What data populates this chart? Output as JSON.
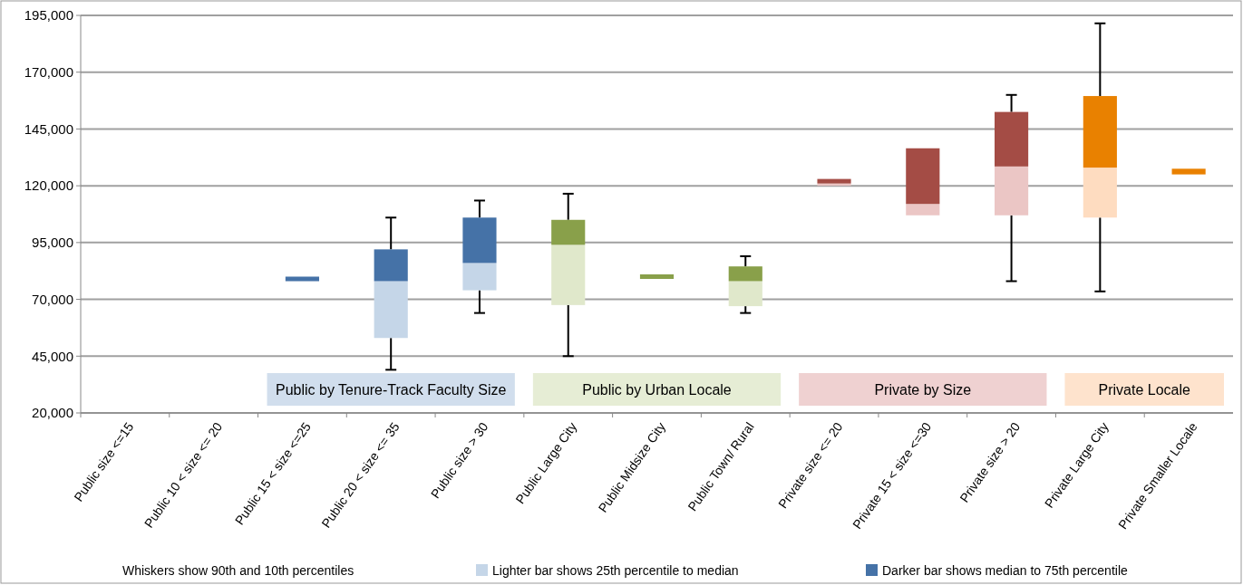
{
  "chart_data": {
    "type": "box",
    "categories": [
      "Public size <=15",
      "Public 10 < size <= 20",
      "Public 15 < size <=25",
      "Public 20 < size <= 35",
      "Public size > 30",
      "Public Large City",
      "Public Midsize City",
      "Public Town/ Rural",
      "Private size <= 20",
      "Private 15 < size <=30",
      "Private size > 20",
      "Private Large City",
      "Private Smaller Locale"
    ],
    "ylim": [
      20000,
      195000
    ],
    "yticks": [
      {
        "value": 20000,
        "label": "20,000"
      },
      {
        "value": 45000,
        "label": "45,000"
      },
      {
        "value": 70000,
        "label": "70,000"
      },
      {
        "value": 95000,
        "label": "95,000"
      },
      {
        "value": 120000,
        "label": "120,000"
      },
      {
        "value": 145000,
        "label": "145,000"
      },
      {
        "value": 170000,
        "label": "170,000"
      },
      {
        "value": 195000,
        "label": "195,000"
      }
    ],
    "grid": "y",
    "series": [
      {
        "name": "Public by Tenure-Track Faculty Size",
        "color": "#4572a7",
        "colors": [
          null,
          null,
          null,
          "#c5d6e8",
          "#c5d6e8",
          null,
          null,
          null,
          null,
          null,
          null,
          null,
          null
        ],
        "boxes": [
          null,
          null,
          {
            "low": null,
            "q1": 78000,
            "median": 78000,
            "q3": 80000,
            "high": null
          },
          {
            "low": 39000,
            "q1": 53000,
            "median": 78000,
            "q3": 92000,
            "high": 106000
          },
          {
            "low": 64000,
            "q1": 74000,
            "median": 86000,
            "q3": 106000,
            "high": 113500
          },
          null,
          null,
          null,
          null,
          null,
          null,
          null,
          null
        ]
      },
      {
        "name": "Public by Urban Locale",
        "color": "#89a04a",
        "colors": [
          null,
          null,
          null,
          null,
          null,
          "#e0e8cb",
          null,
          "#e0e8cb",
          null,
          null,
          null,
          null,
          null
        ],
        "boxes": [
          null,
          null,
          null,
          null,
          null,
          {
            "low": 45000,
            "q1": 67500,
            "median": 94000,
            "q3": 105000,
            "high": 116500
          },
          {
            "low": null,
            "q1": 79000,
            "median": 79000,
            "q3": 81000,
            "high": null
          },
          {
            "low": 64000,
            "q1": 67000,
            "median": 78000,
            "q3": 84500,
            "high": 89000
          },
          null,
          null,
          null,
          null,
          null
        ]
      },
      {
        "name": "Private by Size",
        "color": "#a44c45",
        "colors": [
          null,
          null,
          null,
          null,
          null,
          null,
          null,
          null,
          "#ebc6c5",
          "#ebc6c5",
          "#ebc6c5",
          null,
          null
        ],
        "boxes": [
          null,
          null,
          null,
          null,
          null,
          null,
          null,
          null,
          {
            "low": null,
            "q1": 120000,
            "median": 121000,
            "q3": 123000,
            "high": null
          },
          {
            "low": null,
            "q1": 107000,
            "median": 112000,
            "q3": 136500,
            "high": null
          },
          {
            "low": 78000,
            "q1": 107000,
            "median": 128500,
            "q3": 152500,
            "high": 160000
          },
          null,
          null
        ]
      },
      {
        "name": "Private Locale",
        "color": "#e98100",
        "colors": [
          null,
          null,
          null,
          null,
          null,
          null,
          null,
          null,
          null,
          null,
          null,
          "#fedcc0",
          null
        ],
        "boxes": [
          null,
          null,
          null,
          null,
          null,
          null,
          null,
          null,
          null,
          null,
          null,
          {
            "low": 73500,
            "q1": 106000,
            "median": 128000,
            "q3": 159500,
            "high": 191500
          },
          {
            "low": null,
            "q1": 125000,
            "median": 125000,
            "q3": 127500,
            "high": null
          }
        ]
      }
    ],
    "annotations": [
      "Whiskers show 90th and 10th percentiles",
      "Lighter bar shows 25th percentile to median",
      "Darker bar shows median to 75th percentile"
    ]
  }
}
